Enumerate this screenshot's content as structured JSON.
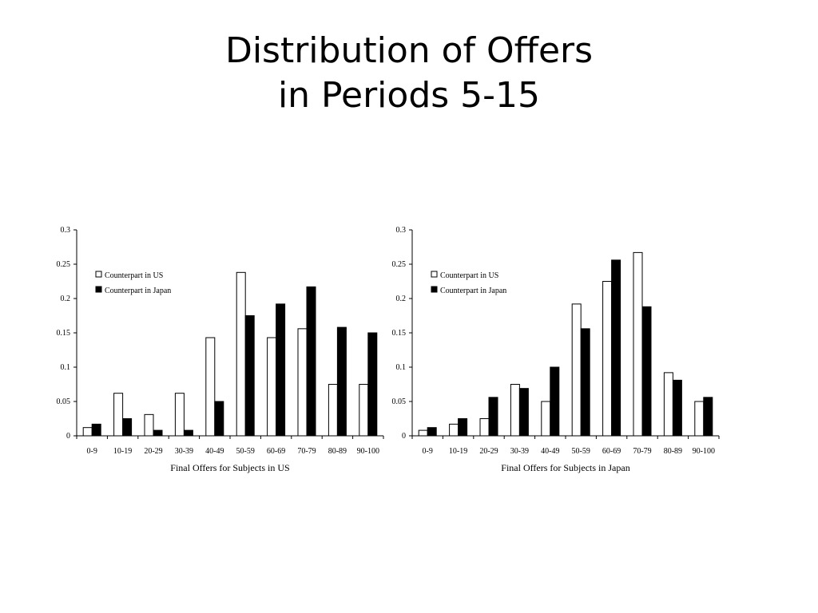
{
  "title": {
    "line1": "Distribution of Offers",
    "line2": "in Periods 5-15"
  },
  "colors": {
    "us_fill": "#ffffff",
    "japan_fill": "#000000",
    "stroke": "#000000"
  },
  "chart_data": [
    {
      "type": "bar",
      "title": "",
      "xlabel": "Final Offers for Subjects in US",
      "ylabel": "",
      "ylim": [
        0,
        0.3
      ],
      "yticks": [
        "0",
        "0.05",
        "0.1",
        "0.15",
        "0.2",
        "0.25",
        "0.3"
      ],
      "grid": false,
      "legend": "top-left",
      "categories": [
        "0-9",
        "10-19",
        "20-29",
        "30-39",
        "40-49",
        "50-59",
        "60-69",
        "70-79",
        "80-89",
        "90-100"
      ],
      "series": [
        {
          "name": "Counterpart in US",
          "fill": "#ffffff",
          "values": [
            0.012,
            0.062,
            0.031,
            0.062,
            0.143,
            0.238,
            0.143,
            0.156,
            0.075,
            0.075
          ]
        },
        {
          "name": "Counterpart in Japan",
          "fill": "#000000",
          "values": [
            0.017,
            0.025,
            0.008,
            0.008,
            0.05,
            0.175,
            0.192,
            0.217,
            0.158,
            0.15
          ]
        }
      ]
    },
    {
      "type": "bar",
      "title": "",
      "xlabel": "Final Offers for Subjects in Japan",
      "ylabel": "",
      "ylim": [
        0,
        0.3
      ],
      "yticks": [
        "0",
        "0.05",
        "0.1",
        "0.15",
        "0.2",
        "0.25",
        "0.3"
      ],
      "grid": false,
      "legend": "top-left",
      "categories": [
        "0-9",
        "10-19",
        "20-29",
        "30-39",
        "40-49",
        "50-59",
        "60-69",
        "70-79",
        "80-89",
        "90-100"
      ],
      "series": [
        {
          "name": "Counterpart in US",
          "fill": "#ffffff",
          "values": [
            0.008,
            0.017,
            0.025,
            0.075,
            0.05,
            0.192,
            0.225,
            0.267,
            0.092,
            0.05
          ]
        },
        {
          "name": "Counterpart in Japan",
          "fill": "#000000",
          "values": [
            0.012,
            0.025,
            0.056,
            0.069,
            0.1,
            0.156,
            0.256,
            0.188,
            0.081,
            0.056
          ]
        }
      ]
    }
  ]
}
